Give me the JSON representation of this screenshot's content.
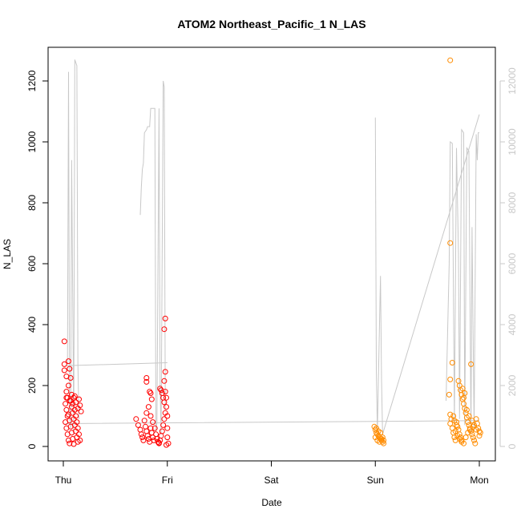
{
  "chart_data": {
    "type": "scatter",
    "title": "ATOM2 Northeast_Pacific_1 N_LAS",
    "xlabel": "Date",
    "ylabel": "N_LAS",
    "x_type": "date",
    "x_ticks": [
      {
        "x": 0,
        "label": "Thu"
      },
      {
        "x": 1,
        "label": "Fri"
      },
      {
        "x": 2,
        "label": "Sat"
      },
      {
        "x": 3,
        "label": "Sun"
      },
      {
        "x": 4,
        "label": "Mon"
      }
    ],
    "xlim": [
      -0.2,
      4.1
    ],
    "ylim": [
      0,
      1300
    ],
    "y_ticks": [
      0,
      200,
      400,
      600,
      800,
      1000,
      1200
    ],
    "y2lim": [
      0,
      13000
    ],
    "y2_ticks": [
      0,
      2000,
      4000,
      6000,
      8000,
      10000,
      12000
    ],
    "grid": false,
    "legend": "none",
    "colors": {
      "series_1": "#ff0000",
      "series_2": "#ff8c00",
      "overlay_line": "#c8c8c8",
      "axis": "#000000",
      "right_axis": "#c8c8c8"
    },
    "series": [
      {
        "color": "#ff0000",
        "points": [
          [
            0.01,
            345
          ],
          [
            0.01,
            270
          ],
          [
            0.01,
            250
          ],
          [
            0.03,
            230
          ],
          [
            0.03,
            180
          ],
          [
            0.04,
            160
          ],
          [
            0.05,
            280
          ],
          [
            0.06,
            255
          ],
          [
            0.07,
            225
          ],
          [
            0.05,
            200
          ],
          [
            0.02,
            140
          ],
          [
            0.03,
            120
          ],
          [
            0.04,
            100
          ],
          [
            0.02,
            80
          ],
          [
            0.03,
            60
          ],
          [
            0.04,
            40
          ],
          [
            0.05,
            20
          ],
          [
            0.06,
            10
          ],
          [
            0.07,
            150
          ],
          [
            0.08,
            130
          ],
          [
            0.09,
            110
          ],
          [
            0.1,
            90
          ],
          [
            0.11,
            70
          ],
          [
            0.12,
            50
          ],
          [
            0.13,
            30
          ],
          [
            0.14,
            15
          ],
          [
            0.15,
            155
          ],
          [
            0.16,
            135
          ],
          [
            0.17,
            115
          ],
          [
            0.08,
            170
          ],
          [
            0.09,
            140
          ],
          [
            0.1,
            160
          ],
          [
            0.12,
            145
          ],
          [
            0.14,
            125
          ],
          [
            0.05,
            105
          ],
          [
            0.06,
            85
          ],
          [
            0.07,
            65
          ],
          [
            0.08,
            45
          ],
          [
            0.09,
            25
          ],
          [
            0.1,
            8
          ],
          [
            0.11,
            120
          ],
          [
            0.12,
            100
          ],
          [
            0.13,
            80
          ],
          [
            0.14,
            60
          ],
          [
            0.15,
            40
          ],
          [
            0.16,
            20
          ],
          [
            0.03,
            160
          ],
          [
            0.06,
            150
          ],
          [
            0.11,
            165
          ],
          [
            0.7,
            90
          ],
          [
            0.72,
            70
          ],
          [
            0.74,
            55
          ],
          [
            0.75,
            40
          ],
          [
            0.76,
            30
          ],
          [
            0.77,
            20
          ],
          [
            0.78,
            85
          ],
          [
            0.79,
            65
          ],
          [
            0.8,
            50
          ],
          [
            0.81,
            35
          ],
          [
            0.82,
            25
          ],
          [
            0.83,
            15
          ],
          [
            0.84,
            60
          ],
          [
            0.85,
            45
          ],
          [
            0.86,
            30
          ],
          [
            0.87,
            20
          ],
          [
            0.8,
            110
          ],
          [
            0.82,
            130
          ],
          [
            0.83,
            180
          ],
          [
            0.84,
            175
          ],
          [
            0.85,
            155
          ],
          [
            0.8,
            225
          ],
          [
            0.8,
            212
          ],
          [
            0.84,
            100
          ],
          [
            0.86,
            80
          ],
          [
            0.88,
            60
          ],
          [
            0.89,
            40
          ],
          [
            0.9,
            25
          ],
          [
            0.91,
            15
          ],
          [
            0.92,
            10
          ],
          [
            0.93,
            190
          ],
          [
            0.94,
            185
          ],
          [
            0.95,
            175
          ],
          [
            0.96,
            160
          ],
          [
            0.97,
            145
          ],
          [
            0.98,
            420
          ],
          [
            0.97,
            385
          ],
          [
            0.98,
            245
          ],
          [
            0.97,
            215
          ],
          [
            0.98,
            180
          ],
          [
            0.99,
            160
          ],
          [
            0.99,
            130
          ],
          [
            0.98,
            110
          ],
          [
            0.97,
            90
          ],
          [
            0.96,
            70
          ],
          [
            0.95,
            50
          ],
          [
            0.94,
            35
          ],
          [
            0.93,
            20
          ],
          [
            0.92,
            12
          ],
          [
            1.0,
            100
          ],
          [
            1.0,
            60
          ],
          [
            1.0,
            30
          ],
          [
            1.01,
            10
          ],
          [
            0.99,
            5
          ]
        ]
      },
      {
        "color": "#ff8c00",
        "points": [
          [
            2.99,
            65
          ],
          [
            3.0,
            55
          ],
          [
            3.01,
            45
          ],
          [
            3.02,
            40
          ],
          [
            3.03,
            35
          ],
          [
            3.04,
            30
          ],
          [
            3.05,
            25
          ],
          [
            3.06,
            20
          ],
          [
            3.07,
            15
          ],
          [
            3.08,
            10
          ],
          [
            3.0,
            30
          ],
          [
            3.02,
            20
          ],
          [
            3.04,
            15
          ],
          [
            3.06,
            25
          ],
          [
            3.07,
            30
          ],
          [
            3.01,
            60
          ],
          [
            3.03,
            50
          ],
          [
            3.05,
            45
          ],
          [
            3.08,
            20
          ],
          [
            3.72,
            1268
          ],
          [
            3.72,
            668
          ],
          [
            3.72,
            220
          ],
          [
            3.71,
            170
          ],
          [
            3.72,
            105
          ],
          [
            3.73,
            90
          ],
          [
            3.72,
            75
          ],
          [
            3.74,
            60
          ],
          [
            3.75,
            45
          ],
          [
            3.76,
            30
          ],
          [
            3.77,
            20
          ],
          [
            3.74,
            275
          ],
          [
            3.78,
            80
          ],
          [
            3.79,
            65
          ],
          [
            3.8,
            55
          ],
          [
            3.81,
            40
          ],
          [
            3.82,
            30
          ],
          [
            3.83,
            20
          ],
          [
            3.8,
            215
          ],
          [
            3.81,
            200
          ],
          [
            3.82,
            185
          ],
          [
            3.83,
            170
          ],
          [
            3.84,
            155
          ],
          [
            3.85,
            140
          ],
          [
            3.86,
            125
          ],
          [
            3.87,
            110
          ],
          [
            3.88,
            95
          ],
          [
            3.89,
            80
          ],
          [
            3.9,
            70
          ],
          [
            3.91,
            60
          ],
          [
            3.92,
            50
          ],
          [
            3.93,
            40
          ],
          [
            3.94,
            30
          ],
          [
            3.95,
            20
          ],
          [
            3.96,
            10
          ],
          [
            3.92,
            270
          ],
          [
            3.97,
            90
          ],
          [
            3.98,
            75
          ],
          [
            3.99,
            60
          ],
          [
            4.0,
            50
          ],
          [
            4.01,
            45
          ],
          [
            4.0,
            35
          ],
          [
            3.85,
            160
          ],
          [
            3.86,
            175
          ],
          [
            3.84,
            190
          ],
          [
            3.88,
            120
          ],
          [
            3.9,
            100
          ],
          [
            3.93,
            85
          ],
          [
            3.95,
            70
          ],
          [
            3.97,
            55
          ],
          [
            3.75,
            100
          ],
          [
            3.76,
            85
          ],
          [
            3.78,
            70
          ],
          [
            3.77,
            50
          ],
          [
            3.79,
            35
          ],
          [
            3.81,
            25
          ],
          [
            3.83,
            15
          ],
          [
            3.85,
            10
          ],
          [
            3.87,
            30
          ],
          [
            3.89,
            45
          ],
          [
            3.91,
            55
          ],
          [
            3.94,
            65
          ]
        ]
      }
    ],
    "overlay_line": {
      "axis": "right",
      "color": "#c8c8c8",
      "segments": [
        [
          [
            0.04,
            2700
          ],
          [
            0.05,
            12300
          ],
          [
            0.06,
            1000
          ],
          [
            0.07,
            600
          ],
          [
            0.08,
            9400
          ],
          [
            0.09,
            5000
          ],
          [
            0.1,
            400
          ],
          [
            0.11,
            12700
          ],
          [
            0.13,
            12500
          ],
          [
            0.14,
            2700
          ],
          [
            0.15,
            900
          ]
        ],
        [
          [
            0.02,
            2650
          ],
          [
            1.0,
            2750
          ]
        ],
        [
          [
            0.74,
            7600
          ],
          [
            0.75,
            8500
          ],
          [
            0.76,
            9100
          ],
          [
            0.77,
            9300
          ],
          [
            0.78,
            10300
          ],
          [
            0.8,
            10400
          ],
          [
            0.81,
            10500
          ],
          [
            0.83,
            10500
          ],
          [
            0.84,
            11100
          ],
          [
            0.88,
            11100
          ],
          [
            0.89,
            500
          ],
          [
            0.9,
            800
          ],
          [
            0.92,
            11100
          ],
          [
            0.93,
            2000
          ],
          [
            0.94,
            400
          ],
          [
            0.96,
            12000
          ],
          [
            0.97,
            11800
          ],
          [
            0.98,
            1200
          ]
        ],
        [
          [
            0.02,
            750
          ],
          [
            3.0,
            820
          ],
          [
            4.0,
            850
          ]
        ],
        [
          [
            3.0,
            10800
          ],
          [
            3.01,
            2500
          ],
          [
            3.02,
            500
          ],
          [
            3.05,
            5600
          ],
          [
            3.06,
            2200
          ],
          [
            3.07,
            400
          ],
          [
            4.0,
            10900
          ]
        ],
        [
          [
            3.68,
            1500
          ],
          [
            3.71,
            6000
          ],
          [
            3.72,
            10000
          ],
          [
            3.74,
            9950
          ],
          [
            3.76,
            800
          ],
          [
            3.78,
            9800
          ],
          [
            3.8,
            6300
          ],
          [
            3.81,
            900
          ],
          [
            3.83,
            10400
          ],
          [
            3.85,
            10300
          ],
          [
            3.86,
            700
          ],
          [
            3.88,
            9800
          ],
          [
            3.9,
            9700
          ],
          [
            3.92,
            400
          ],
          [
            3.93,
            7200
          ],
          [
            3.95,
            500
          ],
          [
            3.97,
            10250
          ],
          [
            3.98,
            9400
          ],
          [
            3.99,
            10300
          ],
          [
            4.0,
            10300
          ]
        ]
      ]
    }
  }
}
